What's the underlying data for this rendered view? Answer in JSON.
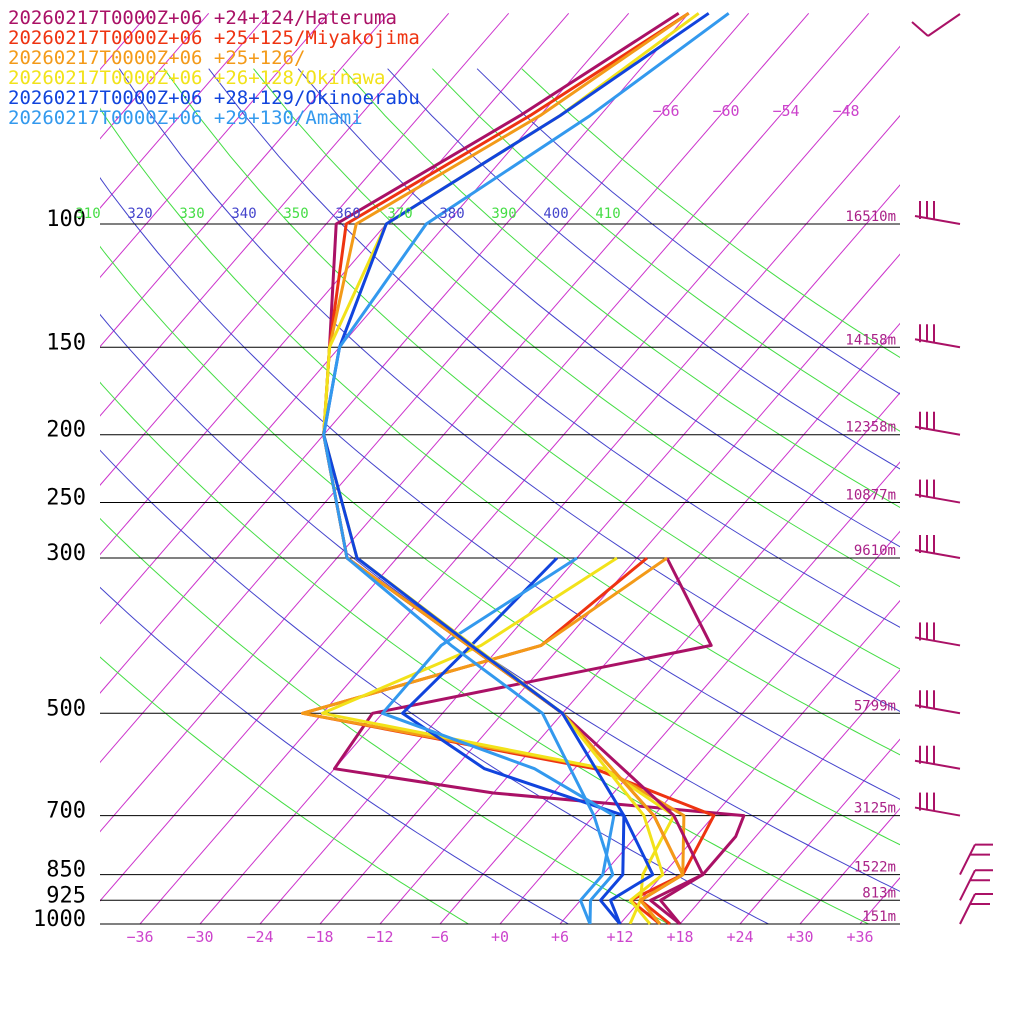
{
  "legend": [
    {
      "text": "20260217T0000Z+06 +24+124/Hateruma",
      "color": "#aa1166"
    },
    {
      "text": "20260217T0000Z+06 +25+125/Miyakojima",
      "color": "#ee3311"
    },
    {
      "text": "20260217T0000Z+06 +25+126/",
      "color": "#f39a18"
    },
    {
      "text": "20260217T0000Z+06 +26+128/Okinawa",
      "color": "#f2e21a"
    },
    {
      "text": "20260217T0000Z+06 +28+129/Okinoerabu",
      "color": "#1144dd"
    },
    {
      "text": "20260217T0000Z+06 +29+130/Amami",
      "color": "#3399ee"
    }
  ],
  "pressure_labels": [
    "100",
    "150",
    "200",
    "250",
    "300",
    "500",
    "700",
    "850",
    "925",
    "1000"
  ],
  "height_labels": [
    {
      "p": 100,
      "text": "16510m"
    },
    {
      "p": 150,
      "text": "14158m"
    },
    {
      "p": 200,
      "text": "12358m"
    },
    {
      "p": 250,
      "text": "10877m"
    },
    {
      "p": 300,
      "text": "9610m"
    },
    {
      "p": 500,
      "text": "5799m"
    },
    {
      "p": 700,
      "text": "3125m"
    },
    {
      "p": 850,
      "text": "1522m"
    },
    {
      "p": 925,
      "text": "813m"
    },
    {
      "p": 1000,
      "text": "151m"
    }
  ],
  "temp_ticks": [
    "−36",
    "−30",
    "−24",
    "−18",
    "−12",
    "−6",
    "+0",
    "+6",
    "+12",
    "+18",
    "+24",
    "+30",
    "+36"
  ],
  "top_isotherm_labels": [
    "−66",
    "−60",
    "−54",
    "−48"
  ],
  "theta_labels": [
    {
      "text": "310",
      "color": "#44dd44"
    },
    {
      "text": "320",
      "color": "#4444cc"
    },
    {
      "text": "330",
      "color": "#44dd44"
    },
    {
      "text": "340",
      "color": "#4444cc"
    },
    {
      "text": "350",
      "color": "#44dd44"
    },
    {
      "text": "360",
      "color": "#4444cc"
    },
    {
      "text": "370",
      "color": "#44dd44"
    },
    {
      "text": "380",
      "color": "#4444cc"
    },
    {
      "text": "390",
      "color": "#44dd44"
    },
    {
      "text": "400",
      "color": "#4444cc"
    },
    {
      "text": "410",
      "color": "#44dd44"
    }
  ],
  "chart_data": {
    "type": "line",
    "subtype": "skew-T log-P sounding",
    "x_axis": "temperature (°C)",
    "y_axis": "pressure (hPa, log)",
    "xlim": [
      -40,
      40
    ],
    "ylim_hpa": [
      1000,
      100
    ],
    "series": [
      {
        "name": "20260217T0000Z+06 +24+124/Hateruma",
        "color": "#aa1166",
        "temperature": [
          [
            1000,
            18
          ],
          [
            925,
            13
          ],
          [
            850,
            16
          ],
          [
            700,
            8
          ],
          [
            500,
            -12
          ],
          [
            300,
            -47
          ],
          [
            200,
            -60
          ],
          [
            150,
            -67
          ],
          [
            100,
            -77
          ],
          [
            70,
            -68
          ],
          [
            50,
            -61
          ]
        ],
        "dewpoint": [
          [
            1000,
            18
          ],
          [
            925,
            14
          ],
          [
            850,
            16
          ],
          [
            750,
            16
          ],
          [
            700,
            15
          ],
          [
            650,
            -12
          ],
          [
            600,
            -30
          ],
          [
            500,
            -31
          ],
          [
            400,
            -3
          ],
          [
            300,
            -15
          ]
        ]
      },
      {
        "name": "20260217T0000Z+06 +25+125/Miyakojima",
        "color": "#ee3311",
        "temperature": [
          [
            1000,
            17
          ],
          [
            925,
            12
          ],
          [
            850,
            14
          ],
          [
            700,
            6
          ],
          [
            500,
            -12
          ],
          [
            300,
            -47
          ],
          [
            200,
            -60
          ],
          [
            150,
            -67
          ],
          [
            100,
            -76
          ],
          [
            70,
            -67
          ],
          [
            50,
            -60
          ]
        ],
        "dewpoint": [
          [
            1000,
            16
          ],
          [
            925,
            11
          ],
          [
            850,
            14
          ],
          [
            700,
            12
          ],
          [
            600,
            -4
          ],
          [
            500,
            -38
          ],
          [
            400,
            -20
          ],
          [
            300,
            -17
          ]
        ]
      },
      {
        "name": "20260217T0000Z+06 +25+126/",
        "color": "#f39a18",
        "temperature": [
          [
            1000,
            16
          ],
          [
            925,
            12
          ],
          [
            850,
            14
          ],
          [
            700,
            6
          ],
          [
            500,
            -12
          ],
          [
            300,
            -47
          ],
          [
            200,
            -60
          ],
          [
            150,
            -67
          ],
          [
            100,
            -75
          ],
          [
            70,
            -66
          ],
          [
            50,
            -60
          ]
        ],
        "dewpoint": [
          [
            1000,
            16
          ],
          [
            925,
            12
          ],
          [
            850,
            14
          ],
          [
            700,
            9
          ],
          [
            600,
            -3
          ],
          [
            500,
            -38
          ],
          [
            400,
            -20
          ],
          [
            300,
            -15
          ]
        ]
      },
      {
        "name": "20260217T0000Z+06 +26+128/Okinawa",
        "color": "#f2e21a",
        "temperature": [
          [
            1000,
            15
          ],
          [
            925,
            11
          ],
          [
            850,
            12
          ],
          [
            700,
            5
          ],
          [
            500,
            -12
          ],
          [
            300,
            -46
          ],
          [
            200,
            -60
          ],
          [
            150,
            -67
          ],
          [
            100,
            -72
          ],
          [
            70,
            -64
          ],
          [
            50,
            -59
          ]
        ],
        "dewpoint": [
          [
            1000,
            13
          ],
          [
            925,
            12
          ],
          [
            850,
            10
          ],
          [
            700,
            8
          ],
          [
            600,
            -3
          ],
          [
            500,
            -36
          ],
          [
            400,
            -26
          ],
          [
            300,
            -20
          ]
        ]
      },
      {
        "name": "20260217T0000Z+06 +28+129/Okinoerabu",
        "color": "#1144dd",
        "temperature": [
          [
            1000,
            12
          ],
          [
            925,
            9
          ],
          [
            850,
            11
          ],
          [
            700,
            3
          ],
          [
            500,
            -12
          ],
          [
            400,
            -27
          ],
          [
            300,
            -46
          ],
          [
            200,
            -60
          ],
          [
            150,
            -66
          ],
          [
            100,
            -72
          ],
          [
            70,
            -64
          ],
          [
            50,
            -58
          ]
        ],
        "dewpoint": [
          [
            1000,
            12
          ],
          [
            925,
            8
          ],
          [
            850,
            8
          ],
          [
            700,
            3
          ],
          [
            600,
            -15
          ],
          [
            500,
            -28
          ],
          [
            400,
            -27
          ],
          [
            300,
            -26
          ]
        ]
      },
      {
        "name": "20260217T0000Z+06 +29+130/Amami",
        "color": "#3399ee",
        "temperature": [
          [
            1000,
            9
          ],
          [
            925,
            7
          ],
          [
            850,
            7
          ],
          [
            700,
            0
          ],
          [
            500,
            -14
          ],
          [
            400,
            -29
          ],
          [
            300,
            -47
          ],
          [
            200,
            -60
          ],
          [
            150,
            -66
          ],
          [
            100,
            -68
          ],
          [
            70,
            -61
          ],
          [
            50,
            -56
          ]
        ],
        "dewpoint": [
          [
            1000,
            9
          ],
          [
            925,
            6
          ],
          [
            850,
            6
          ],
          [
            700,
            2
          ],
          [
            600,
            -10
          ],
          [
            500,
            -30
          ],
          [
            400,
            -30
          ],
          [
            300,
            -24
          ]
        ]
      }
    ],
    "wind_barbs_hpa": [
      50,
      100,
      150,
      200,
      250,
      300,
      400,
      500,
      600,
      700,
      850,
      925,
      1000
    ],
    "reference_lines": [
      "dry adiabats (potential temperature 310–410 K)",
      "skewed isotherms",
      "isobars"
    ]
  }
}
